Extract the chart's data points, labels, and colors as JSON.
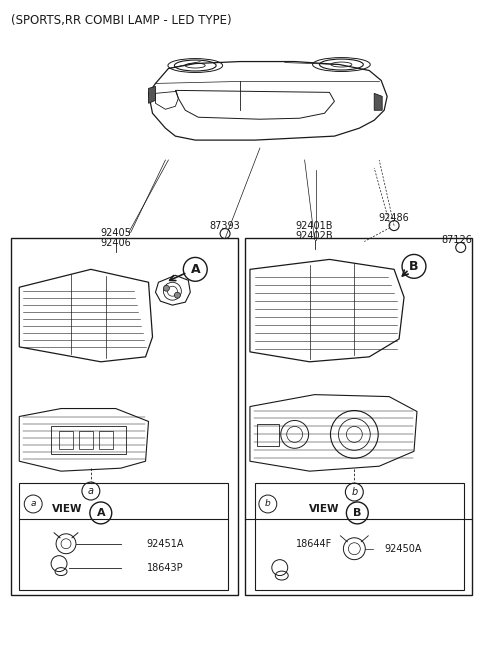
{
  "title": "(SPORTS,RR COMBI LAMP - LED TYPE)",
  "bg_color": "#ffffff",
  "line_color": "#1a1a1a",
  "part_a1": "92451A",
  "part_a2": "18643P",
  "part_b1": "18644F",
  "part_b2": "92450A",
  "pn_92405": "92405",
  "pn_92406": "92406",
  "pn_87393": "87393",
  "pn_92401B": "92401B",
  "pn_92402B": "92402B",
  "pn_92486": "92486",
  "pn_87126": "87126",
  "label_view_A": "VIEW",
  "label_view_B": "VIEW",
  "circle_A": "A",
  "circle_B": "B",
  "circle_a": "a",
  "circle_b": "b"
}
